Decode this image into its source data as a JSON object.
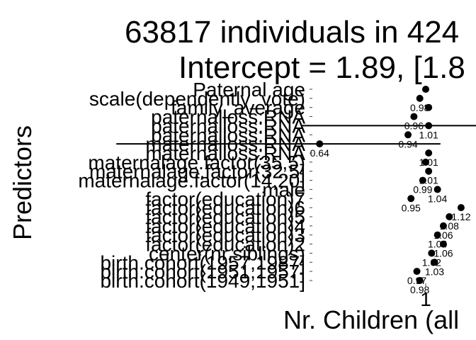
{
  "chart_data": {
    "type": "forest",
    "title_lines": [
      "63817 individuals in 424",
      "Intercept = 1.89, [1.8"
    ],
    "xlabel": "Nr. Children (all",
    "ylabel": "Predictors",
    "x_tick_labels": [
      "1"
    ],
    "x_ticks": [
      1
    ],
    "reference_line": 1,
    "rows": [
      {
        "label": "Paternal age",
        "estimate": 1.0,
        "value_label": "",
        "ci": [
          1.0,
          1.0
        ]
      },
      {
        "label": "scale(dependently_vote)",
        "estimate": 0.98,
        "value_label": "0.98",
        "ci": [
          0.98,
          0.98
        ]
      },
      {
        "label": "family_average",
        "estimate": 1.01,
        "value_label": "",
        "ci": [
          1.01,
          1.01
        ]
      },
      {
        "label": "paternalloss:RNA",
        "estimate": 0.96,
        "value_label": "0.96",
        "ci": [
          0.96,
          0.96
        ]
      },
      {
        "label": "paternalloss:RNA",
        "estimate": 1.01,
        "value_label": "1.01",
        "ci": [
          0.58,
          1.44
        ]
      },
      {
        "label": "paternalloss:RNA",
        "estimate": 0.94,
        "value_label": "0.94",
        "ci": [
          0.94,
          0.94
        ]
      },
      {
        "label": "maternalloss:RNA",
        "estimate": 0.64,
        "value_label": "0.64",
        "ci": [
          -0.05,
          1.05
        ]
      },
      {
        "label": "maternalloss:RNA",
        "estimate": 1.01,
        "value_label": "1.01",
        "ci": [
          1.01,
          1.01
        ]
      },
      {
        "label": "maternalage.factor(35,5)",
        "estimate": 1.0,
        "value_label": "",
        "ci": [
          1.0,
          1.0
        ]
      },
      {
        "label": "maternalage.factor(32,5]",
        "estimate": 1.01,
        "value_label": "1.01",
        "ci": [
          1.01,
          1.01
        ]
      },
      {
        "label": "maternalage.factor(14,20]",
        "estimate": 0.99,
        "value_label": "0.99",
        "ci": [
          0.99,
          0.99
        ]
      },
      {
        "label": "male",
        "estimate": 1.04,
        "value_label": "1.04",
        "ci": [
          1.04,
          1.04
        ]
      },
      {
        "label": "factor(education)7",
        "estimate": 0.95,
        "value_label": "0.95",
        "ci": [
          0.95,
          0.95
        ]
      },
      {
        "label": "factor(education)6",
        "estimate": 1.12,
        "value_label": "1.12",
        "ci": [
          1.12,
          1.12
        ]
      },
      {
        "label": "factor(education)5",
        "estimate": 1.08,
        "value_label": "1.08",
        "ci": [
          1.08,
          1.08
        ]
      },
      {
        "label": "factor(education)4",
        "estimate": 1.06,
        "value_label": "1.06",
        "ci": [
          1.06,
          1.06
        ]
      },
      {
        "label": "factor(education)3",
        "estimate": 1.04,
        "value_label": "1.04",
        "ci": [
          1.04,
          1.04
        ]
      },
      {
        "label": "factor(education)2",
        "estimate": 1.06,
        "value_label": "1.06",
        "ci": [
          1.06,
          1.06
        ]
      },
      {
        "label": "center(nr.siblings)",
        "estimate": 1.02,
        "value_label": "1.02",
        "ci": [
          1.02,
          1.02
        ]
      },
      {
        "label": "birth.cohort(1957,1987]",
        "estimate": 1.03,
        "value_label": "1.03",
        "ci": [
          1.03,
          1.03
        ]
      },
      {
        "label": "birth.cohort(1951,1957]",
        "estimate": 0.97,
        "value_label": "0.97",
        "ci": [
          0.97,
          0.97
        ]
      },
      {
        "label": "birth.cohort(1949,1951]",
        "estimate": 0.98,
        "value_label": "0.98",
        "ci": [
          0.98,
          0.98
        ]
      }
    ],
    "colors": {
      "marks": "#000000",
      "axis": "#000000",
      "ticks": "#444444",
      "background": "#ffffff"
    }
  }
}
